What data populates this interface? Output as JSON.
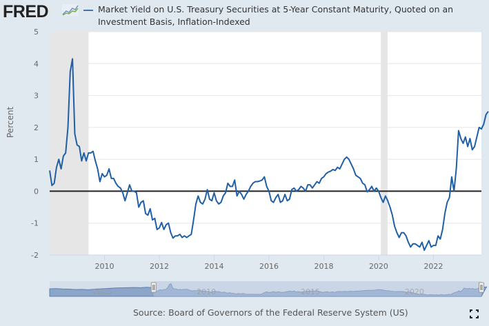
{
  "header": {
    "logo_text": "FRED",
    "logo_icon": "chart-line-icon",
    "series_title": "Market Yield on U.S. Treasury Securities at 5-Year Constant Maturity, Quoted on an Investment Basis, Inflation-Indexed"
  },
  "footer": {
    "source": "Source: Board of Governors of the Federal Reserve System (US)",
    "fullscreen_icon": "fullscreen-icon"
  },
  "colors": {
    "series": "#1f5fa6",
    "recession": "#e6e6e6",
    "zero_line": "#222222",
    "background": "#e1e9f0",
    "navigator_fill": "#7f9cc4",
    "navigator_selected": "#bccbe3"
  },
  "navigator": {
    "tick_labels": [
      "2005",
      "2010",
      "2015",
      "2020"
    ],
    "selected_range": [
      "2008-01",
      "2023-09"
    ]
  },
  "chart_data": {
    "type": "line",
    "title": "Market Yield on U.S. Treasury Securities at 5-Year Constant Maturity, Quoted on an Investment Basis, Inflation-Indexed",
    "xlabel": "",
    "ylabel": "Percent",
    "ylim": [
      -2,
      5
    ],
    "xlim": [
      2008.0,
      2023.75
    ],
    "yticks": [
      -2,
      -1,
      0,
      1,
      2,
      3,
      4,
      5
    ],
    "xticks": [
      2010,
      2012,
      2014,
      2016,
      2018,
      2020,
      2022
    ],
    "grid": true,
    "legend": "top",
    "recessions": [
      [
        2008.0,
        2009.42
      ],
      [
        2020.08,
        2020.33
      ]
    ],
    "series": [
      {
        "name": "Market Yield on U.S. Treasury Securities at 5-Year Constant Maturity, Quoted on an Investment Basis, Inflation-Indexed",
        "start": "2008-01",
        "frequency": "monthly",
        "values": [
          0.65,
          0.18,
          0.25,
          0.75,
          1.0,
          0.7,
          1.1,
          1.2,
          2.0,
          3.75,
          4.15,
          1.8,
          1.45,
          1.4,
          0.95,
          1.2,
          0.95,
          1.2,
          1.2,
          1.25,
          0.95,
          0.7,
          0.3,
          0.55,
          0.45,
          0.5,
          0.7,
          0.4,
          0.4,
          0.25,
          0.15,
          0.1,
          -0.05,
          -0.3,
          -0.05,
          0.2,
          0.0,
          0.0,
          -0.05,
          -0.5,
          -0.35,
          -0.3,
          -0.7,
          -0.75,
          -0.55,
          -0.9,
          -0.85,
          -1.2,
          -1.15,
          -0.98,
          -1.2,
          -1.05,
          -1.0,
          -1.3,
          -1.47,
          -1.4,
          -1.4,
          -1.35,
          -1.45,
          -1.4,
          -1.45,
          -1.4,
          -1.35,
          -0.9,
          -0.4,
          -0.15,
          -0.35,
          -0.4,
          -0.25,
          0.05,
          -0.25,
          -0.3,
          -0.05,
          -0.3,
          -0.4,
          -0.35,
          -0.15,
          -0.05,
          0.25,
          0.15,
          0.15,
          0.35,
          -0.15,
          0.0,
          -0.1,
          -0.25,
          -0.1,
          0.0,
          0.15,
          0.25,
          0.3,
          0.3,
          0.32,
          0.35,
          0.45,
          0.15,
          0.0,
          -0.3,
          -0.35,
          -0.2,
          -0.1,
          -0.35,
          -0.3,
          -0.1,
          -0.3,
          -0.25,
          0.05,
          0.1,
          0.0,
          0.05,
          0.15,
          0.1,
          0.0,
          0.2,
          0.2,
          0.1,
          0.2,
          0.3,
          0.25,
          0.4,
          0.45,
          0.55,
          0.6,
          0.63,
          0.68,
          0.65,
          0.75,
          0.7,
          0.85,
          1.0,
          1.07,
          1.0,
          0.85,
          0.7,
          0.5,
          0.45,
          0.4,
          0.25,
          0.2,
          -0.02,
          0.05,
          0.15,
          0.0,
          0.1,
          0.0,
          -0.2,
          -0.35,
          -0.15,
          -0.3,
          -0.5,
          -0.75,
          -1.1,
          -1.3,
          -1.45,
          -1.3,
          -1.3,
          -1.4,
          -1.6,
          -1.75,
          -1.65,
          -1.65,
          -1.7,
          -1.75,
          -1.6,
          -1.85,
          -1.7,
          -1.55,
          -1.75,
          -1.7,
          -1.7,
          -1.4,
          -1.5,
          -1.2,
          -0.7,
          -0.35,
          -0.2,
          0.45,
          0.0,
          0.7,
          1.9,
          1.65,
          1.5,
          1.7,
          1.4,
          1.65,
          1.3,
          1.4,
          1.7,
          2.0,
          1.95,
          2.1,
          2.4,
          2.5
        ]
      }
    ]
  }
}
